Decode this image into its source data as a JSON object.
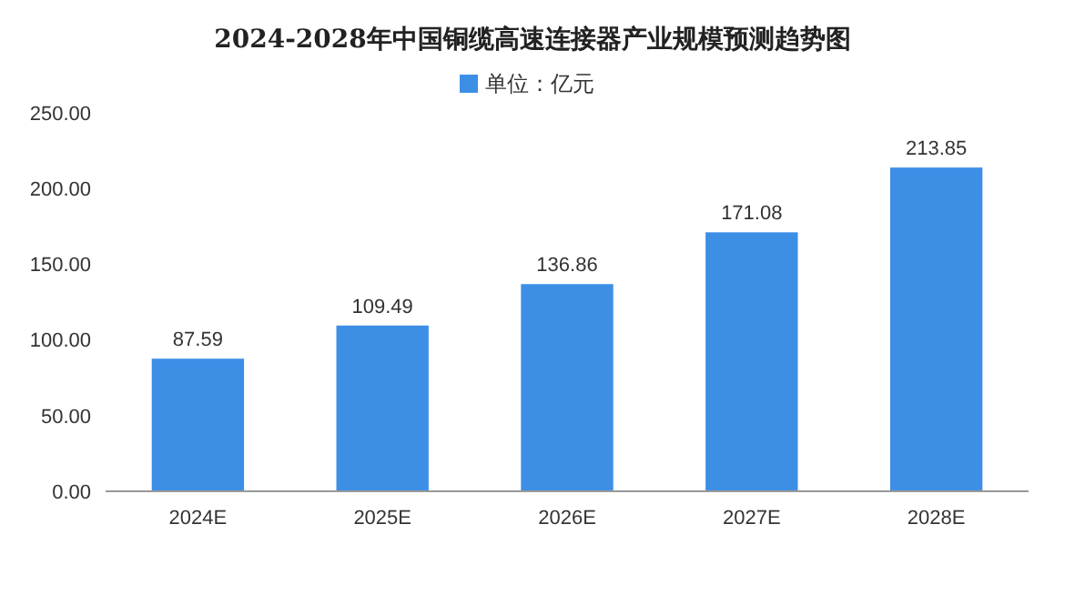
{
  "chart_data": {
    "type": "bar",
    "title": "2024-2028年中国铜缆高速连接器产业规模预测趋势图",
    "categories": [
      "2024E",
      "2025E",
      "2026E",
      "2027E",
      "2028E"
    ],
    "series": [
      {
        "name": "单位：亿元",
        "color": "#3d8fe6",
        "values": [
          87.59,
          109.49,
          136.86,
          171.08,
          213.85
        ]
      }
    ],
    "ylim": [
      0,
      250
    ],
    "yticks": [
      {
        "value": 0,
        "label": "0.00"
      },
      {
        "value": 50,
        "label": "50.00"
      },
      {
        "value": 100,
        "label": "100.00"
      },
      {
        "value": 150,
        "label": "150.00"
      },
      {
        "value": 200,
        "label": "200.00"
      },
      {
        "value": 250,
        "label": "250.00"
      }
    ],
    "data_labels": true,
    "legend": "top",
    "grid": false
  }
}
